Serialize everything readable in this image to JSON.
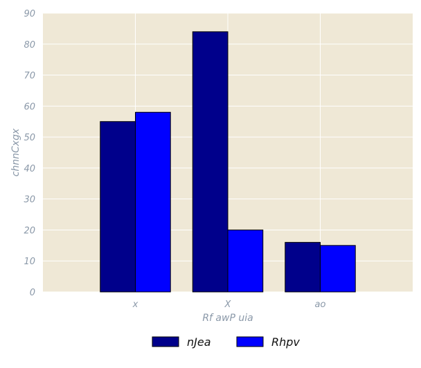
{
  "chart_data": {
    "type": "bar",
    "categories": [
      "x",
      "X",
      "ao"
    ],
    "series": [
      {
        "name": "nJea",
        "values": [
          55,
          84,
          16
        ],
        "color": "#00008b"
      },
      {
        "name": "Rhpv",
        "values": [
          58,
          20,
          15
        ],
        "color": "#0000ff"
      }
    ],
    "xlabel": "Rf awP uia",
    "ylabel": "chnnCxgx",
    "ylim": [
      0,
      90
    ],
    "yticks": [
      0,
      10,
      20,
      30,
      40,
      50,
      60,
      70,
      80,
      90
    ],
    "grid": true,
    "legend_position": "bottom-center",
    "colors": {
      "plot_background": "#efe8d6",
      "grid": "#ffffff",
      "text": "#8a98a8",
      "bar_edge": "#000000"
    }
  }
}
